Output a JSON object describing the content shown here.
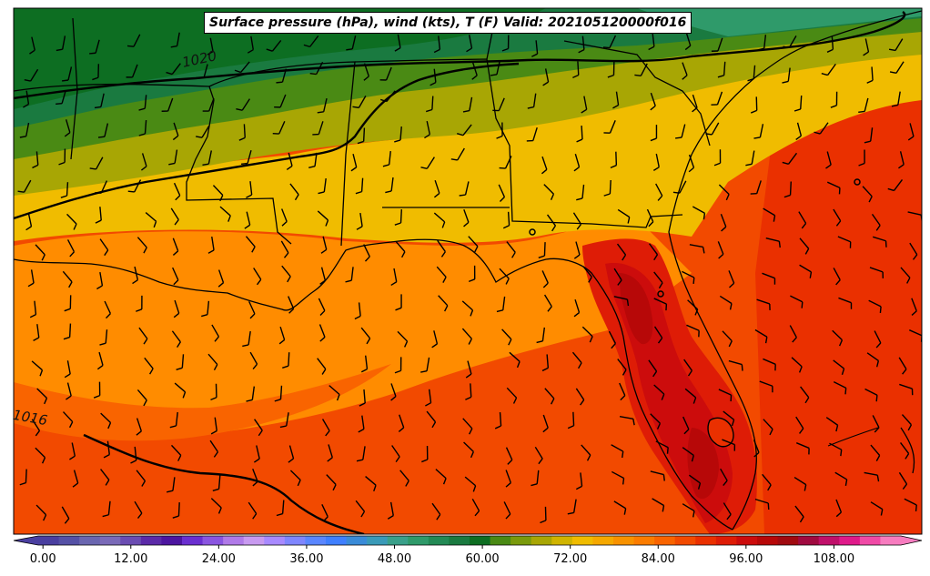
{
  "title": "Surface pressure (hPa), wind (kts), T (F) Valid: 202105120000f016",
  "isobar_labels": [
    "1020",
    "1016"
  ],
  "colorbar": {
    "tick_labels": [
      "0.00",
      "12.00",
      "24.00",
      "36.00",
      "48.00",
      "60.00",
      "72.00",
      "84.00",
      "96.00",
      "108.00"
    ],
    "range": [
      -4,
      120
    ],
    "step": 4,
    "colors": [
      "#4a3fa0",
      "#5551a6",
      "#6a66b0",
      "#7a6ab8",
      "#6a4cb2",
      "#5b2aa8",
      "#4c15a0",
      "#6a2fd0",
      "#8a55e0",
      "#b07ae8",
      "#c89af0",
      "#a88aff",
      "#7f86ff",
      "#5a86ff",
      "#3f7fff",
      "#3a8bd8",
      "#3a9ab8",
      "#3aa08a",
      "#2f9a6a",
      "#238a55",
      "#1a7a40",
      "#0d6e22",
      "#4a8a14",
      "#7a9a0c",
      "#a8a604",
      "#d0b400",
      "#f0bc00",
      "#f5a800",
      "#f89200",
      "#fb7c00",
      "#f96400",
      "#f24a00",
      "#ea3000",
      "#de1c06",
      "#cc0c0c",
      "#b70808",
      "#a00a10",
      "#a00a40",
      "#c0106a",
      "#df1a8a",
      "#f04aa6",
      "#f77cbf"
    ]
  },
  "legend_colors": {
    "coast": "#000000",
    "isobar": "#000000",
    "gulf_warm": "#ff8c00",
    "land_hot": "#cc0c0c",
    "north_green": "#1a7a40"
  },
  "icons": [
    "wind-barb-icon"
  ]
}
